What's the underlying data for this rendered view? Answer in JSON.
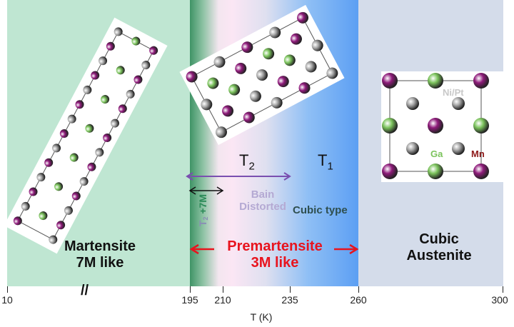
{
  "regions": {
    "martensite": {
      "line1": "Martensite",
      "line2": "7M like",
      "color": "#bfe6d2"
    },
    "premartensite": {
      "line1": "Premartensite",
      "line2": "3M like",
      "color": "#e8141e"
    },
    "austenite": {
      "line1": "Cubic",
      "line2": "Austenite",
      "color": "#d4dcea"
    }
  },
  "labels": {
    "t2": "T",
    "t2_sub": "2",
    "t1": "T",
    "t1_sub": "1",
    "bain": "Bain",
    "distorted": "Distorted",
    "cubic_type": "Cubic type",
    "t2_7m": "T",
    "t2_7m_sub": "2",
    "t2_7m_rest": " +7M"
  },
  "atoms": {
    "nipt": "Ni/Pt",
    "ga": "Ga",
    "mn": "Mn",
    "colors": {
      "mn": "#8e1a7a",
      "ga": "#7bc35c",
      "nipt": "#a6a6a6"
    }
  },
  "axis": {
    "ticks": [
      "10",
      "195",
      "210",
      "235",
      "260",
      "300"
    ],
    "xlabel": "T (K)",
    "break_mark": "//"
  }
}
